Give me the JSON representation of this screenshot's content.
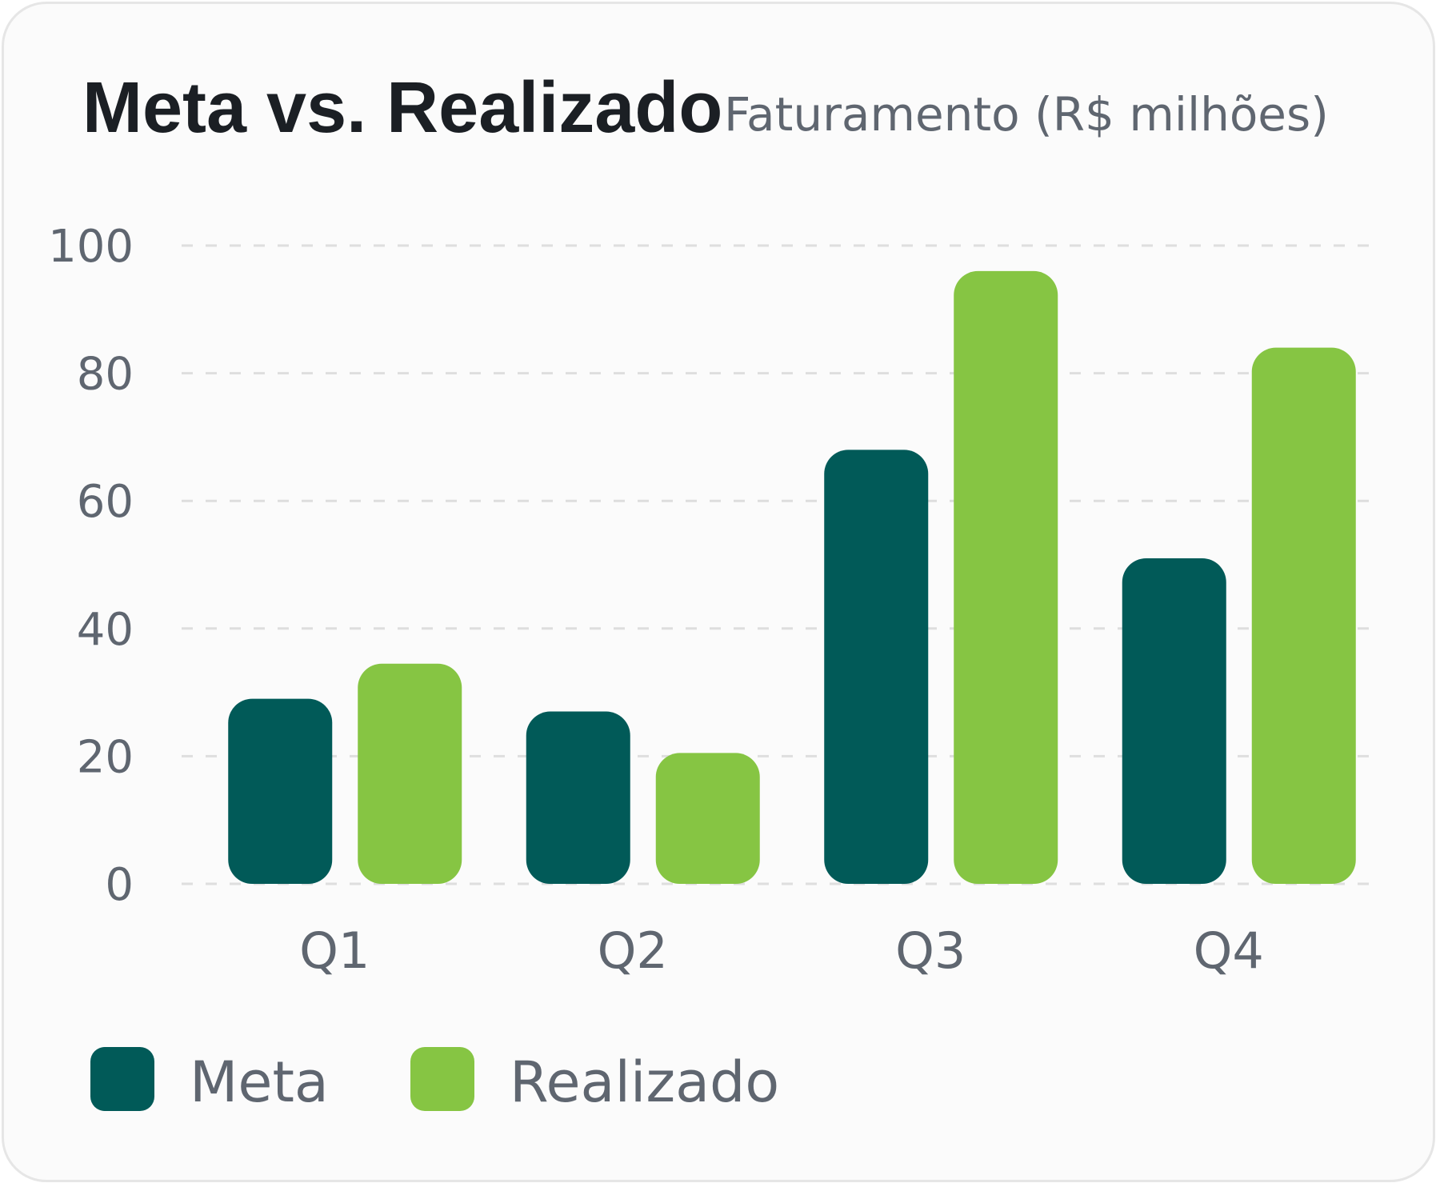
{
  "chart_data": {
    "type": "bar",
    "title": "Meta vs. Realizado",
    "subtitle": "Faturamento (R$ milhões)",
    "categories": [
      "Q1",
      "Q2",
      "Q3",
      "Q4"
    ],
    "series": [
      {
        "name": "Meta",
        "values": [
          29,
          27,
          68,
          51
        ],
        "color": "#015a58"
      },
      {
        "name": "Realizado",
        "values": [
          34.5,
          20.5,
          96,
          84
        ],
        "color": "#86c543"
      }
    ],
    "ylim": [
      0,
      100
    ],
    "yticks": [
      0,
      20,
      40,
      60,
      80,
      100
    ],
    "grid": true,
    "legend": "bottom-left"
  }
}
